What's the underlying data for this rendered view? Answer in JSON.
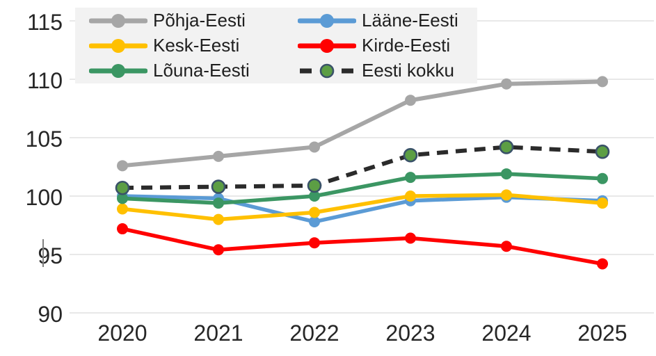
{
  "chart_data": {
    "type": "line",
    "title": "",
    "xlabel": "",
    "ylabel": "",
    "categories": [
      "2020",
      "2021",
      "2022",
      "2023",
      "2024",
      "2025"
    ],
    "yticks": [
      115,
      110,
      105,
      100,
      95,
      90
    ],
    "ylim": [
      90,
      115
    ],
    "grid": true,
    "legend_position": "top-left",
    "legend_background": "#f2f2f2",
    "gridline_color": "#d9d9d9",
    "axis_text_color": "#262626",
    "series": [
      {
        "name": "Põhja-Eesti",
        "color": "#a6a6a6",
        "style": "solid",
        "values": [
          102.6,
          103.4,
          104.2,
          108.2,
          109.6,
          109.8
        ]
      },
      {
        "name": "Lääne-Eesti",
        "color": "#5b9bd5",
        "style": "solid",
        "values": [
          100.0,
          99.8,
          97.8,
          99.6,
          99.9,
          99.6
        ]
      },
      {
        "name": "Kesk-Eesti",
        "color": "#ffc000",
        "style": "solid",
        "values": [
          98.9,
          98.0,
          98.6,
          100.0,
          100.1,
          99.4
        ]
      },
      {
        "name": "Kirde-Eesti",
        "color": "#ff0000",
        "style": "solid",
        "values": [
          97.2,
          95.4,
          96.0,
          96.4,
          95.7,
          94.2
        ]
      },
      {
        "name": "Lõuna-Eesti",
        "color": "#3b9663",
        "style": "solid",
        "values": [
          99.8,
          99.4,
          100.0,
          101.6,
          101.9,
          101.5
        ]
      },
      {
        "name": "Eesti kokku",
        "color": "#2b2b2b",
        "style": "dashed",
        "marker_fill": "#5c9e44",
        "marker_ring": "#3a5269",
        "values": [
          100.7,
          100.8,
          100.9,
          103.5,
          104.2,
          103.8
        ]
      }
    ],
    "legend_order_note": "row-major: Põhja-Eesti, Lääne-Eesti / Kesk-Eesti, Kirde-Eesti / Lõuna-Eesti, Eesti kokku"
  }
}
